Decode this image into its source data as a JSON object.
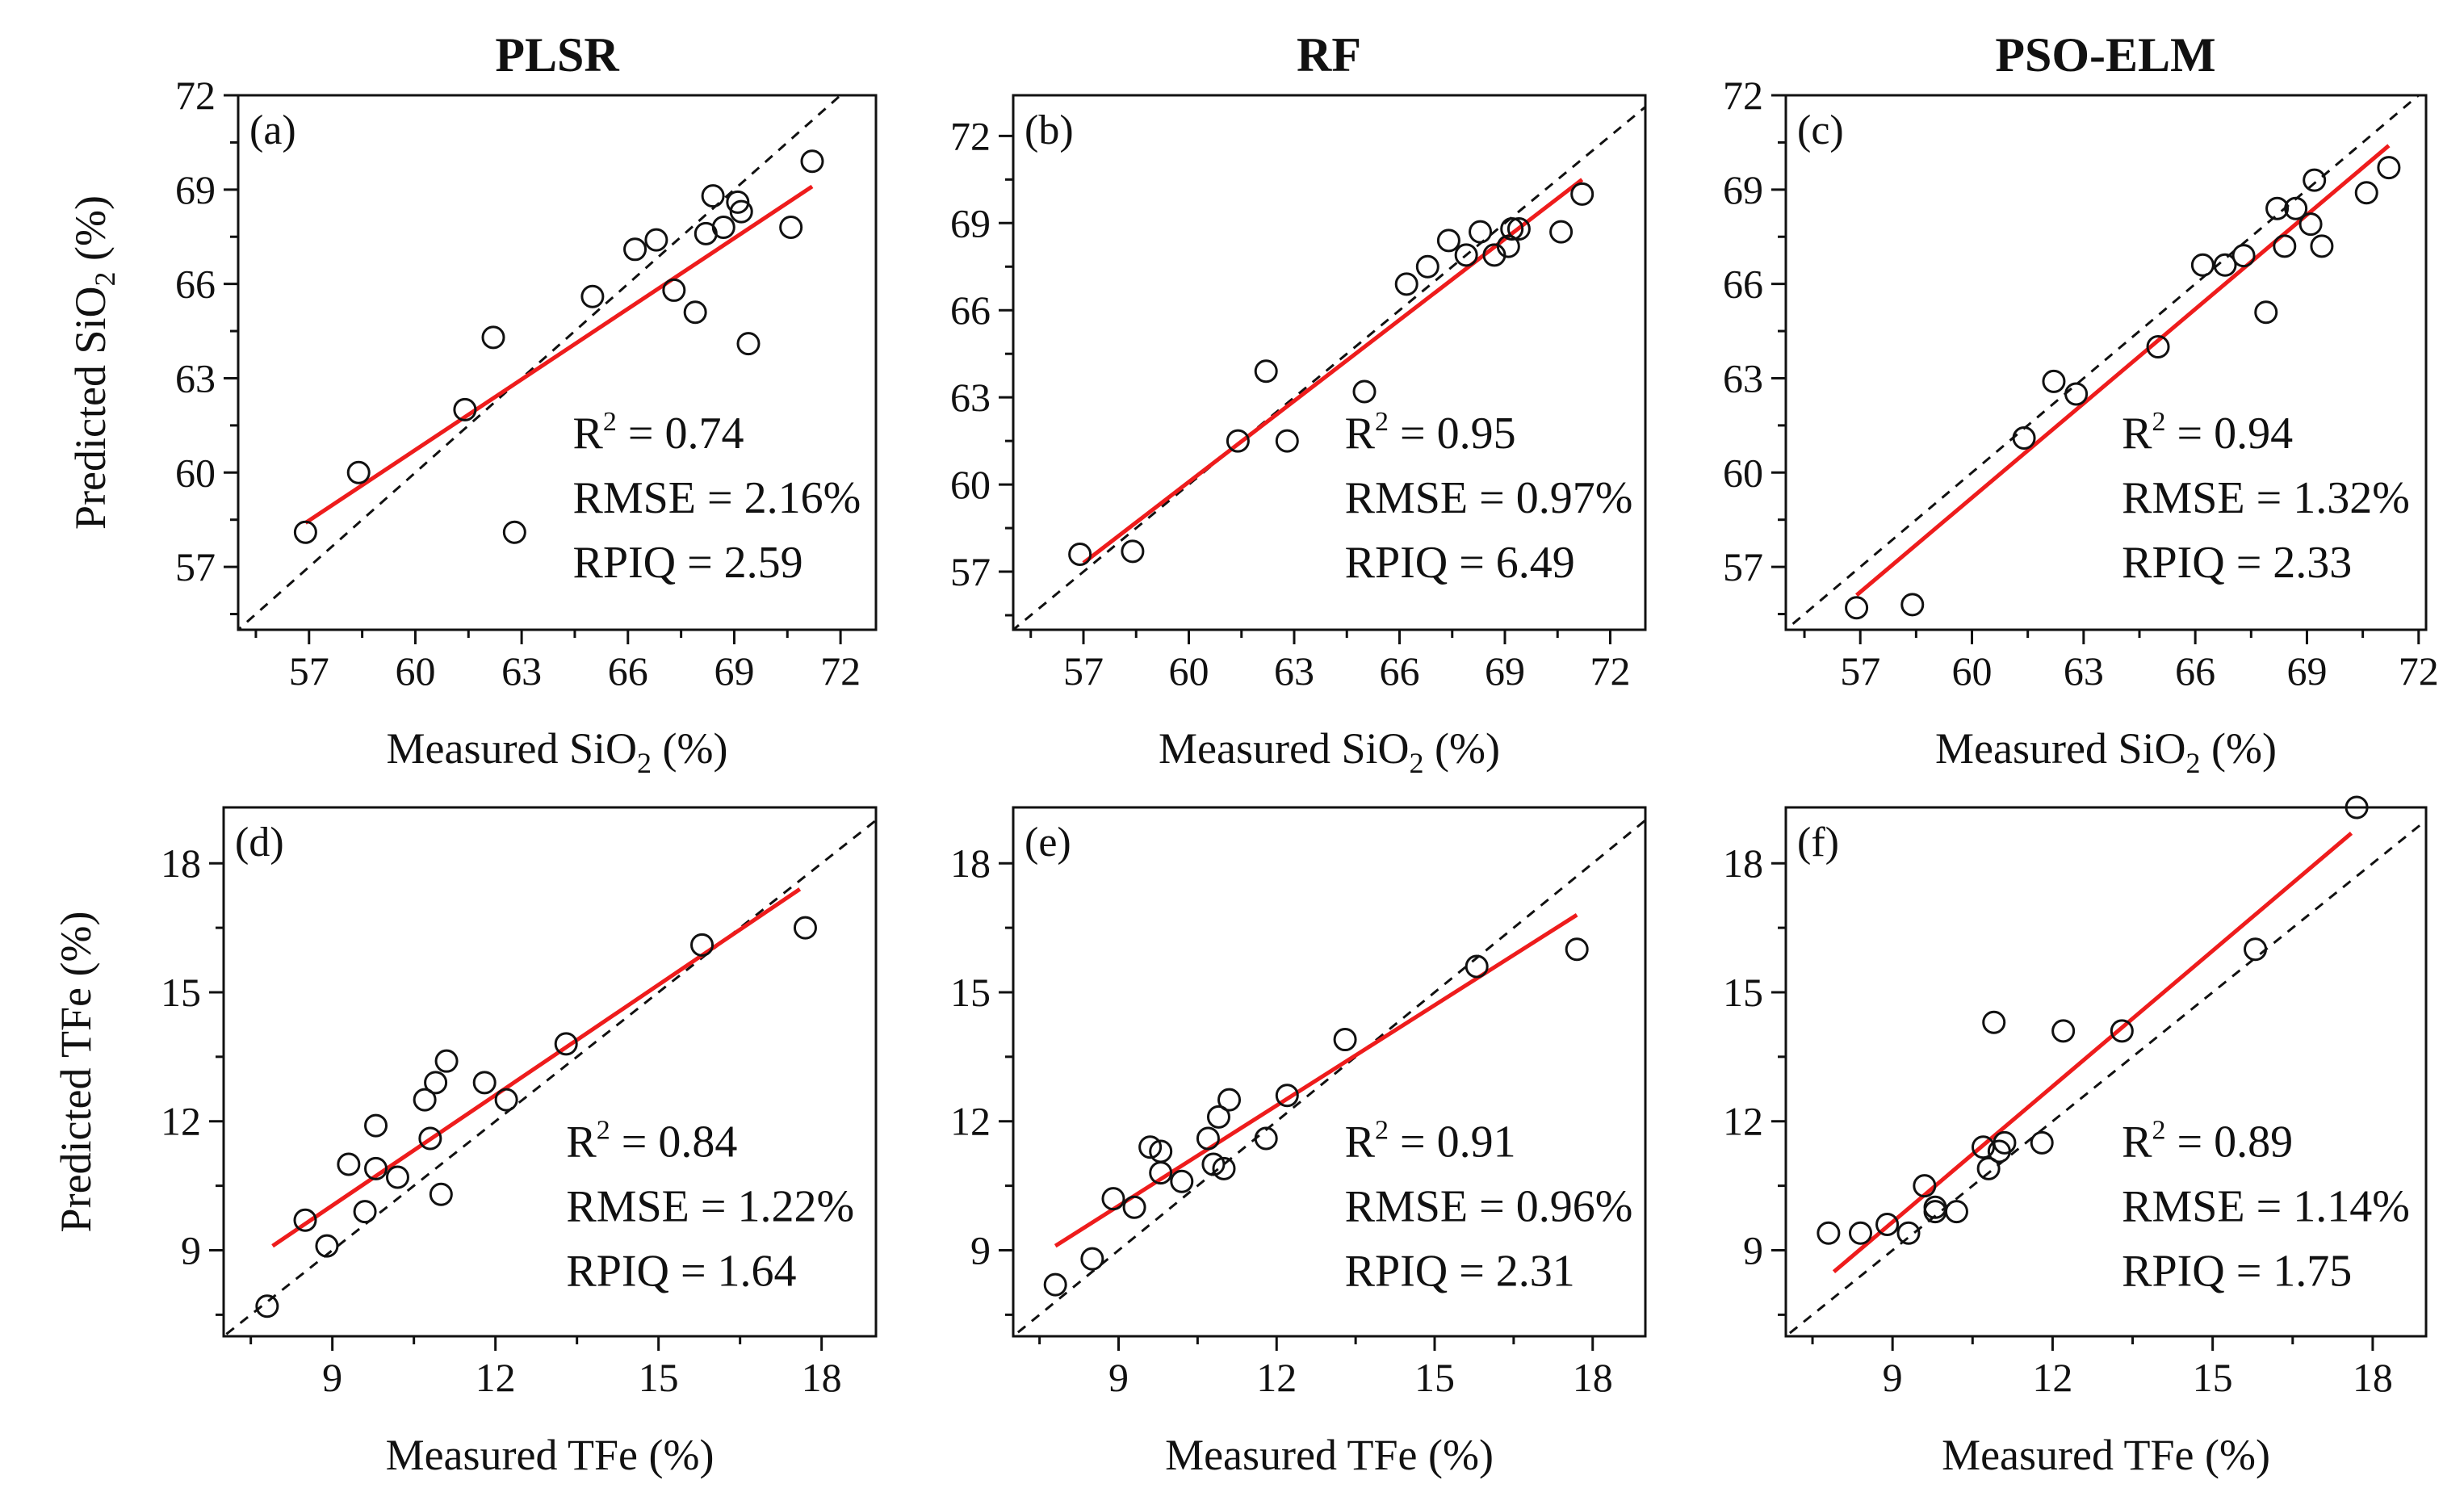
{
  "chart_data": {
    "column_titles": [
      "PLSR",
      "RF",
      "PSO-ELM"
    ],
    "panels": [
      {
        "id": "a",
        "label": "(a)",
        "type": "scatter",
        "model": "PLSR",
        "xlabel": "Measured SiO₂ (%)",
        "ylabel": "Predicted SiO₂ (%)",
        "x_ticks": [
          57,
          60,
          63,
          66,
          69,
          72
        ],
        "y_ticks": [
          57,
          60,
          63,
          66,
          69,
          72
        ],
        "xlim": [
          55,
          73
        ],
        "ylim": [
          55,
          72
        ],
        "points": [
          [
            56.9,
            58.1
          ],
          [
            58.4,
            60.0
          ],
          [
            61.4,
            62.0
          ],
          [
            62.2,
            64.3
          ],
          [
            62.8,
            58.1
          ],
          [
            65.0,
            65.6
          ],
          [
            66.2,
            67.1
          ],
          [
            66.8,
            67.4
          ],
          [
            67.3,
            65.8
          ],
          [
            67.9,
            65.1
          ],
          [
            68.2,
            67.6
          ],
          [
            68.4,
            68.8
          ],
          [
            68.7,
            67.8
          ],
          [
            69.1,
            68.6
          ],
          [
            69.2,
            68.3
          ],
          [
            69.4,
            64.1
          ],
          [
            70.6,
            67.8
          ],
          [
            71.2,
            69.9
          ]
        ],
        "fit_line": [
          [
            56.9,
            58.4
          ],
          [
            71.2,
            69.1
          ]
        ],
        "stats": {
          "r2": "= 0.74",
          "rmse": "RMSE = 2.16%",
          "rpiq": "RPIQ = 2.59"
        }
      },
      {
        "id": "b",
        "label": "(b)",
        "type": "scatter",
        "model": "RF",
        "xlabel": "Measured SiO₂ (%)",
        "ylabel": "",
        "x_ticks": [
          57,
          60,
          63,
          66,
          69,
          72
        ],
        "y_ticks": [
          57,
          60,
          63,
          66,
          69,
          72
        ],
        "xlim": [
          55,
          73
        ],
        "ylim": [
          55,
          73.4
        ],
        "points": [
          [
            56.9,
            57.6
          ],
          [
            58.4,
            57.7
          ],
          [
            61.4,
            61.5
          ],
          [
            62.2,
            63.9
          ],
          [
            62.8,
            61.5
          ],
          [
            65.0,
            63.2
          ],
          [
            66.2,
            66.9
          ],
          [
            66.8,
            67.5
          ],
          [
            67.4,
            68.4
          ],
          [
            67.9,
            67.9
          ],
          [
            68.3,
            68.7
          ],
          [
            68.7,
            67.9
          ],
          [
            69.1,
            68.2
          ],
          [
            69.2,
            68.8
          ],
          [
            69.4,
            68.8
          ],
          [
            70.6,
            68.7
          ],
          [
            71.2,
            70.0
          ]
        ],
        "fit_line": [
          [
            57.0,
            57.3
          ],
          [
            71.2,
            70.5
          ]
        ],
        "stats": {
          "r2": "= 0.95",
          "rmse": "RMSE = 0.97%",
          "rpiq": "RPIQ = 6.49"
        }
      },
      {
        "id": "c",
        "label": "(c)",
        "type": "scatter",
        "model": "PSO-ELM",
        "xlabel": "Measured SiO₂ (%)",
        "ylabel": "",
        "x_ticks": [
          57,
          60,
          63,
          66,
          69,
          72
        ],
        "y_ticks": [
          57,
          60,
          63,
          66,
          69,
          72
        ],
        "xlim": [
          55,
          72.2
        ],
        "ylim": [
          55,
          72
        ],
        "points": [
          [
            56.9,
            55.7
          ],
          [
            58.4,
            55.8
          ],
          [
            61.4,
            61.1
          ],
          [
            62.2,
            62.9
          ],
          [
            62.8,
            62.5
          ],
          [
            65.0,
            64.0
          ],
          [
            66.2,
            66.6
          ],
          [
            66.8,
            66.6
          ],
          [
            67.3,
            66.9
          ],
          [
            67.9,
            65.1
          ],
          [
            68.2,
            68.4
          ],
          [
            68.4,
            67.2
          ],
          [
            68.7,
            68.4
          ],
          [
            69.1,
            67.9
          ],
          [
            69.2,
            69.3
          ],
          [
            69.4,
            67.2
          ],
          [
            70.6,
            68.9
          ],
          [
            71.2,
            69.7
          ]
        ],
        "fit_line": [
          [
            56.9,
            56.1
          ],
          [
            71.2,
            70.4
          ]
        ],
        "stats": {
          "r2": "= 0.94",
          "rmse": "RMSE = 1.32%",
          "rpiq": "RPIQ = 2.33"
        }
      },
      {
        "id": "d",
        "label": "(d)",
        "type": "scatter",
        "model": "PLSR",
        "xlabel": "Measured TFe (%)",
        "ylabel": "Predicted TFe (%)",
        "x_ticks": [
          9,
          12,
          15,
          18
        ],
        "y_ticks": [
          9,
          12,
          15,
          18
        ],
        "xlim": [
          7,
          19
        ],
        "ylim": [
          7,
          19.3
        ],
        "points": [
          [
            7.8,
            7.7
          ],
          [
            8.5,
            9.7
          ],
          [
            8.9,
            9.1
          ],
          [
            9.3,
            11.0
          ],
          [
            9.6,
            9.9
          ],
          [
            9.8,
            11.9
          ],
          [
            9.8,
            10.9
          ],
          [
            10.2,
            10.7
          ],
          [
            10.7,
            12.5
          ],
          [
            10.8,
            11.6
          ],
          [
            10.9,
            12.9
          ],
          [
            11.0,
            10.3
          ],
          [
            11.1,
            13.4
          ],
          [
            11.8,
            12.9
          ],
          [
            12.2,
            12.5
          ],
          [
            13.3,
            13.8
          ],
          [
            15.8,
            16.1
          ],
          [
            17.7,
            16.5
          ]
        ],
        "fit_line": [
          [
            7.9,
            9.1
          ],
          [
            17.6,
            17.4
          ]
        ],
        "stats": {
          "r2": "= 0.84",
          "rmse": "RMSE = 1.22%",
          "rpiq": "RPIQ = 1.64"
        }
      },
      {
        "id": "e",
        "label": "(e)",
        "type": "scatter",
        "model": "RF",
        "xlabel": "Measured TFe (%)",
        "ylabel": "",
        "x_ticks": [
          9,
          12,
          15,
          18
        ],
        "y_ticks": [
          9,
          12,
          15,
          18
        ],
        "xlim": [
          7,
          19
        ],
        "ylim": [
          7,
          19.3
        ],
        "points": [
          [
            7.8,
            8.2
          ],
          [
            8.5,
            8.8
          ],
          [
            8.9,
            10.2
          ],
          [
            9.3,
            10.0
          ],
          [
            9.6,
            11.4
          ],
          [
            9.8,
            11.3
          ],
          [
            9.8,
            10.8
          ],
          [
            10.2,
            10.6
          ],
          [
            10.7,
            11.6
          ],
          [
            10.8,
            11.0
          ],
          [
            10.9,
            12.1
          ],
          [
            11.0,
            10.9
          ],
          [
            11.1,
            12.5
          ],
          [
            11.8,
            11.6
          ],
          [
            12.2,
            12.6
          ],
          [
            13.3,
            13.9
          ],
          [
            15.8,
            15.6
          ],
          [
            17.7,
            16.0
          ]
        ],
        "fit_line": [
          [
            7.8,
            9.1
          ],
          [
            17.7,
            16.8
          ]
        ],
        "stats": {
          "r2": "= 0.91",
          "rmse": "RMSE = 0.96%",
          "rpiq": "RPIQ = 2.31"
        }
      },
      {
        "id": "f",
        "label": "(f)",
        "type": "scatter",
        "model": "PSO-ELM",
        "xlabel": "Measured TFe (%)",
        "ylabel": "",
        "x_ticks": [
          9,
          12,
          15,
          18
        ],
        "y_ticks": [
          9,
          12,
          15,
          18
        ],
        "xlim": [
          7,
          19
        ],
        "ylim": [
          7,
          19.3
        ],
        "points": [
          [
            7.8,
            9.4
          ],
          [
            8.4,
            9.4
          ],
          [
            8.9,
            9.6
          ],
          [
            9.3,
            9.4
          ],
          [
            9.6,
            10.5
          ],
          [
            9.8,
            10.0
          ],
          [
            9.8,
            9.9
          ],
          [
            10.2,
            9.9
          ],
          [
            10.7,
            11.4
          ],
          [
            10.8,
            10.9
          ],
          [
            10.9,
            14.3
          ],
          [
            11.0,
            11.3
          ],
          [
            11.1,
            11.5
          ],
          [
            11.8,
            11.5
          ],
          [
            12.2,
            14.1
          ],
          [
            13.3,
            14.1
          ],
          [
            15.8,
            16.0
          ],
          [
            17.7,
            19.3
          ]
        ],
        "fit_line": [
          [
            7.9,
            8.5
          ],
          [
            17.6,
            18.7
          ]
        ],
        "stats": {
          "r2": "= 0.89",
          "rmse": "RMSE = 1.14%",
          "rpiq": "RPIQ = 1.75"
        }
      }
    ],
    "legend": "none",
    "colors": {
      "fit_line": "#ee1c1c",
      "reference_line": "#111111",
      "marker": "#111111"
    }
  }
}
